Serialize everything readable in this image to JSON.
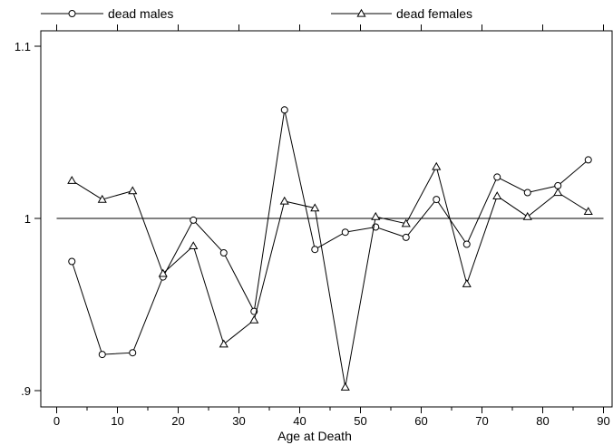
{
  "chart_data": {
    "type": "line",
    "xlabel": "Age at Death",
    "ylabel": "",
    "xlim": [
      -3,
      92
    ],
    "ylim": [
      0.895,
      1.1
    ],
    "x_ticks": [
      0,
      10,
      20,
      30,
      40,
      50,
      60,
      70,
      80,
      90
    ],
    "x_minor_ticks": [
      5,
      15,
      25,
      35,
      45,
      55,
      65,
      75,
      85
    ],
    "x_tick_labels": [
      "0",
      "10",
      "20",
      "30",
      "40",
      "50",
      "60",
      "70",
      "80",
      "90"
    ],
    "y_ticks": [
      0.9,
      1.0,
      1.1
    ],
    "y_tick_labels": [
      ".9",
      "1",
      "1.1"
    ],
    "reference_line": 1.0,
    "grid": false,
    "legend_position": "top",
    "x": [
      2.5,
      7.5,
      12.5,
      17.5,
      22.5,
      27.5,
      32.5,
      37.5,
      42.5,
      47.5,
      52.5,
      57.5,
      62.5,
      67.5,
      72.5,
      77.5,
      82.5,
      87.5
    ],
    "series": [
      {
        "name": "dead males",
        "marker": "circle",
        "values": [
          0.975,
          0.921,
          0.922,
          0.966,
          0.999,
          0.98,
          0.946,
          1.063,
          0.982,
          0.992,
          0.995,
          0.989,
          1.011,
          0.985,
          1.024,
          1.015,
          1.019,
          1.034
        ]
      },
      {
        "name": "dead females",
        "marker": "triangle",
        "values": [
          1.022,
          1.011,
          1.016,
          0.968,
          0.984,
          0.927,
          0.941,
          1.01,
          1.006,
          0.902,
          1.001,
          0.997,
          1.03,
          0.962,
          1.013,
          1.001,
          1.015,
          1.004
        ]
      }
    ]
  }
}
